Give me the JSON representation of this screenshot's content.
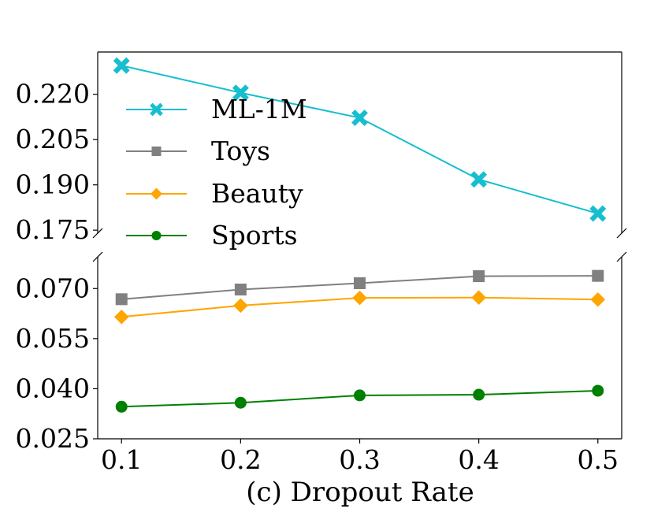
{
  "chart_data": {
    "type": "line",
    "title": "",
    "xlabel": "(c) Dropout Rate",
    "ylabel": "",
    "x": [
      0.1,
      0.2,
      0.3,
      0.4,
      0.5
    ],
    "x_tick_labels": [
      "0.1",
      "0.2",
      "0.3",
      "0.4",
      "0.5"
    ],
    "xlim": [
      0.08,
      0.52
    ],
    "broken_y_axis": true,
    "upper_panel": {
      "ylim": [
        0.174,
        0.234
      ],
      "y_ticks": [
        0.175,
        0.19,
        0.205,
        0.22
      ],
      "y_tick_labels": [
        "0.175",
        "0.190",
        "0.205",
        "0.220"
      ]
    },
    "lower_panel": {
      "ylim": [
        0.025,
        0.0795
      ],
      "y_ticks": [
        0.025,
        0.04,
        0.055,
        0.07
      ],
      "y_tick_labels": [
        "0.025",
        "0.040",
        "0.055",
        "0.070"
      ]
    },
    "series": [
      {
        "name": "ML-1M",
        "panel": "upper",
        "color": "#17becf",
        "marker": "x",
        "values": [
          0.2295,
          0.2205,
          0.2122,
          0.1918,
          0.1805
        ]
      },
      {
        "name": "Toys",
        "panel": "lower",
        "color": "#808080",
        "marker": "square",
        "values": [
          0.0668,
          0.0697,
          0.0716,
          0.0737,
          0.0738
        ]
      },
      {
        "name": "Beauty",
        "panel": "lower",
        "color": "#ffa500",
        "marker": "diamond",
        "values": [
          0.0615,
          0.0649,
          0.0672,
          0.0673,
          0.0667
        ]
      },
      {
        "name": "Sports",
        "panel": "lower",
        "color": "#008000",
        "marker": "circle",
        "values": [
          0.0346,
          0.0358,
          0.038,
          0.0382,
          0.0394
        ]
      }
    ],
    "legend_position": "upper-left"
  }
}
